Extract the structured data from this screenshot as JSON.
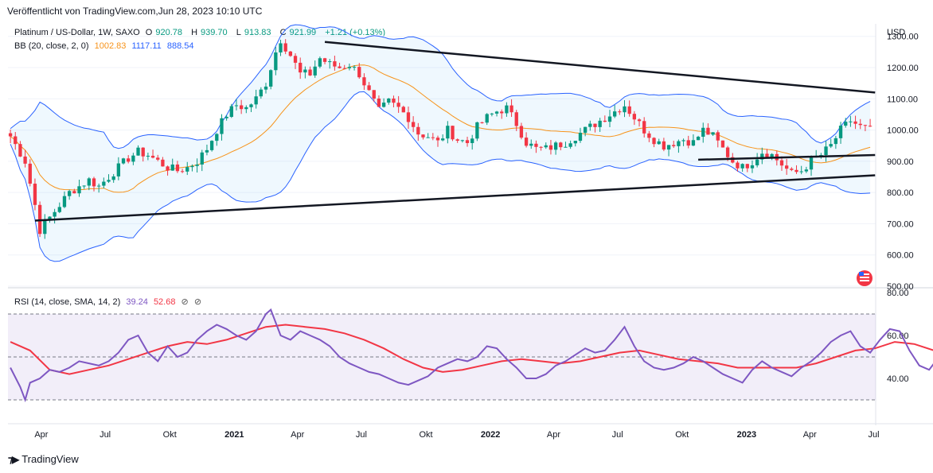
{
  "header": {
    "published": "Veröffentlicht von TradingView.com,Jun 28, 2023 10:10 UTC"
  },
  "legend_price": {
    "symbol": "Platinum / US-Dollar, 1W, SAXO",
    "o_label": "O",
    "o": "920.78",
    "h_label": "H",
    "h": "939.70",
    "l_label": "L",
    "l": "913.83",
    "c_label": "C",
    "c": "921.99",
    "chg": "+1.21 (+0.13%)"
  },
  "legend_bb": {
    "name": "BB (20, close, 2, 0)",
    "basis": "1002.83",
    "upper": "1117.11",
    "lower": "888.54"
  },
  "legend_rsi": {
    "name": "RSI (14, close, SMA, 14, 2)",
    "rsi": "39.24",
    "sma": "52.68"
  },
  "brand": {
    "name": "TradingView"
  },
  "colors": {
    "up": "#089981",
    "down": "#f23645",
    "bb_basis": "#f7931a",
    "bb_band": "#2962ff",
    "rsi": "#7e57c2",
    "rsi_ma": "#f23645",
    "trendline": "#131722"
  },
  "chart_data": [
    {
      "type": "candlestick",
      "title": "Platinum / US-Dollar, 1W, SAXO",
      "currency_label": "USD",
      "y_ticks": [
        "1300.00",
        "1200.00",
        "1100.00",
        "1000.00",
        "900.00",
        "800.00",
        "700.00",
        "600.00",
        "500.00"
      ],
      "ylim": [
        500,
        1340
      ],
      "x_ticks": [
        "Apr",
        "Jul",
        "Okt",
        "2021",
        "Apr",
        "Jul",
        "Okt",
        "2022",
        "Apr",
        "Jul",
        "Okt",
        "2023",
        "Apr",
        "Jul"
      ],
      "x_ticks_bold": [
        "2021",
        "2022",
        "2023"
      ],
      "date_range": [
        "2020-02-17",
        "2023-06-26"
      ],
      "overlays": [
        "Bollinger Bands (20, close, 2, 0)"
      ],
      "trendlines": [
        {
          "from": [
            "2020-03-23",
            710
          ],
          "to": [
            "2023-07-03",
            855
          ]
        },
        {
          "from": [
            "2021-05-10",
            1282
          ],
          "to": [
            "2023-07-03",
            1120
          ]
        },
        {
          "from": [
            "2022-10-24",
            905
          ],
          "to": [
            "2023-07-03",
            920
          ]
        }
      ],
      "close_path": [
        [
          0,
          980
        ],
        [
          3,
          900
        ],
        [
          5,
          760
        ],
        [
          6,
          680
        ],
        [
          8,
          720
        ],
        [
          10,
          760
        ],
        [
          12,
          800
        ],
        [
          14,
          820
        ],
        [
          16,
          840
        ],
        [
          18,
          820
        ],
        [
          20,
          850
        ],
        [
          22,
          880
        ],
        [
          24,
          910
        ],
        [
          26,
          930
        ],
        [
          28,
          920
        ],
        [
          30,
          900
        ],
        [
          32,
          880
        ],
        [
          34,
          870
        ],
        [
          36,
          880
        ],
        [
          38,
          900
        ],
        [
          40,
          940
        ],
        [
          42,
          1000
        ],
        [
          44,
          1050
        ],
        [
          46,
          1080
        ],
        [
          48,
          1070
        ],
        [
          50,
          1100
        ],
        [
          52,
          1150
        ],
        [
          54,
          1250
        ],
        [
          55,
          1290
        ],
        [
          57,
          1240
        ],
        [
          59,
          1180
        ],
        [
          61,
          1180
        ],
        [
          63,
          1230
        ],
        [
          65,
          1210
        ],
        [
          67,
          1200
        ],
        [
          69,
          1210
        ],
        [
          71,
          1180
        ],
        [
          73,
          1120
        ],
        [
          75,
          1060
        ],
        [
          77,
          1090
        ],
        [
          79,
          1070
        ],
        [
          81,
          1040
        ],
        [
          83,
          990
        ],
        [
          85,
          980
        ],
        [
          87,
          960
        ],
        [
          89,
          1000
        ],
        [
          91,
          970
        ],
        [
          93,
          960
        ],
        [
          95,
          1010
        ],
        [
          97,
          1040
        ],
        [
          99,
          1060
        ],
        [
          101,
          1070
        ],
        [
          103,
          1020
        ],
        [
          105,
          960
        ],
        [
          107,
          940
        ],
        [
          109,
          940
        ],
        [
          111,
          950
        ],
        [
          113,
          960
        ],
        [
          115,
          980
        ],
        [
          117,
          1000
        ],
        [
          119,
          1020
        ],
        [
          121,
          1040
        ],
        [
          123,
          1060
        ],
        [
          125,
          1080
        ],
        [
          127,
          1040
        ],
        [
          129,
          1000
        ],
        [
          131,
          970
        ],
        [
          133,
          950
        ],
        [
          135,
          960
        ],
        [
          137,
          970
        ],
        [
          139,
          960
        ],
        [
          141,
          1000
        ],
        [
          143,
          980
        ],
        [
          145,
          940
        ],
        [
          147,
          900
        ],
        [
          149,
          880
        ],
        [
          151,
          900
        ],
        [
          153,
          930
        ],
        [
          155,
          920
        ],
        [
          157,
          890
        ],
        [
          159,
          860
        ],
        [
          161,
          870
        ],
        [
          163,
          900
        ],
        [
          165,
          920
        ],
        [
          167,
          950
        ],
        [
          169,
          1000
        ],
        [
          171,
          1030
        ],
        [
          173,
          1010
        ],
        [
          175,
          1000
        ],
        [
          177,
          1060
        ],
        [
          179,
          1100
        ],
        [
          181,
          1080
        ],
        [
          183,
          1020
        ],
        [
          185,
          980
        ],
        [
          187,
          950
        ],
        [
          189,
          960
        ],
        [
          191,
          980
        ],
        [
          193,
          970
        ],
        [
          195,
          1000
        ],
        [
          197,
          1020
        ],
        [
          199,
          1100
        ],
        [
          201,
          1130
        ],
        [
          203,
          1100
        ],
        [
          205,
          1080
        ],
        [
          207,
          1060
        ],
        [
          209,
          1040
        ],
        [
          211,
          1000
        ],
        [
          213,
          960
        ],
        [
          214,
          920
        ]
      ]
    },
    {
      "type": "line",
      "title": "RSI (14, close, SMA, 14, 2)",
      "y_ticks": [
        "80.00",
        "60.00",
        "40.00"
      ],
      "ylim": [
        20,
        80
      ],
      "bands": [
        70,
        50,
        30
      ],
      "series": [
        {
          "name": "RSI",
          "points": [
            [
              0,
              45
            ],
            [
              2,
              36
            ],
            [
              3,
              30
            ],
            [
              4,
              38
            ],
            [
              6,
              40
            ],
            [
              8,
              44
            ],
            [
              10,
              43
            ],
            [
              12,
              45
            ],
            [
              14,
              48
            ],
            [
              16,
              47
            ],
            [
              18,
              46
            ],
            [
              20,
              48
            ],
            [
              22,
              52
            ],
            [
              24,
              58
            ],
            [
              26,
              60
            ],
            [
              28,
              52
            ],
            [
              30,
              48
            ],
            [
              32,
              55
            ],
            [
              34,
              50
            ],
            [
              36,
              52
            ],
            [
              38,
              58
            ],
            [
              40,
              62
            ],
            [
              42,
              65
            ],
            [
              44,
              63
            ],
            [
              46,
              60
            ],
            [
              48,
              58
            ],
            [
              50,
              62
            ],
            [
              52,
              70
            ],
            [
              53,
              72
            ],
            [
              55,
              60
            ],
            [
              57,
              58
            ],
            [
              59,
              62
            ],
            [
              61,
              60
            ],
            [
              63,
              58
            ],
            [
              65,
              55
            ],
            [
              67,
              50
            ],
            [
              69,
              47
            ],
            [
              71,
              45
            ],
            [
              73,
              43
            ],
            [
              75,
              42
            ],
            [
              77,
              40
            ],
            [
              79,
              38
            ],
            [
              81,
              37
            ],
            [
              83,
              39
            ],
            [
              85,
              41
            ],
            [
              87,
              45
            ],
            [
              89,
              47
            ],
            [
              91,
              49
            ],
            [
              93,
              48
            ],
            [
              95,
              50
            ],
            [
              97,
              55
            ],
            [
              99,
              54
            ],
            [
              101,
              49
            ],
            [
              103,
              45
            ],
            [
              105,
              40
            ],
            [
              107,
              40
            ],
            [
              109,
              42
            ],
            [
              111,
              46
            ],
            [
              113,
              48
            ],
            [
              115,
              51
            ],
            [
              117,
              54
            ],
            [
              119,
              52
            ],
            [
              121,
              53
            ],
            [
              123,
              58
            ],
            [
              125,
              64
            ],
            [
              127,
              55
            ],
            [
              129,
              48
            ],
            [
              131,
              45
            ],
            [
              133,
              44
            ],
            [
              135,
              45
            ],
            [
              137,
              47
            ],
            [
              139,
              50
            ],
            [
              141,
              48
            ],
            [
              143,
              45
            ],
            [
              145,
              42
            ],
            [
              147,
              40
            ],
            [
              149,
              38
            ],
            [
              151,
              44
            ],
            [
              153,
              48
            ],
            [
              155,
              45
            ],
            [
              157,
              43
            ],
            [
              159,
              41
            ],
            [
              161,
              45
            ],
            [
              163,
              48
            ],
            [
              165,
              52
            ],
            [
              167,
              57
            ],
            [
              169,
              60
            ],
            [
              171,
              62
            ],
            [
              173,
              55
            ],
            [
              175,
              52
            ],
            [
              177,
              58
            ],
            [
              179,
              63
            ],
            [
              181,
              62
            ],
            [
              183,
              53
            ],
            [
              185,
              46
            ],
            [
              187,
              44
            ],
            [
              189,
              50
            ],
            [
              191,
              52
            ],
            [
              193,
              50
            ],
            [
              195,
              54
            ],
            [
              197,
              60
            ],
            [
              199,
              65
            ],
            [
              201,
              58
            ],
            [
              203,
              56
            ],
            [
              205,
              52
            ],
            [
              207,
              50
            ],
            [
              209,
              45
            ],
            [
              211,
              42
            ],
            [
              213,
              39.24
            ]
          ]
        },
        {
          "name": "RSI-based MA",
          "points": [
            [
              0,
              57
            ],
            [
              4,
              53
            ],
            [
              8,
              44
            ],
            [
              12,
              42
            ],
            [
              16,
              44
            ],
            [
              20,
              46
            ],
            [
              24,
              49
            ],
            [
              28,
              52
            ],
            [
              32,
              55
            ],
            [
              36,
              57
            ],
            [
              40,
              56
            ],
            [
              44,
              58
            ],
            [
              48,
              61
            ],
            [
              52,
              64
            ],
            [
              56,
              65
            ],
            [
              60,
              64
            ],
            [
              64,
              63
            ],
            [
              68,
              61
            ],
            [
              72,
              58
            ],
            [
              76,
              54
            ],
            [
              80,
              49
            ],
            [
              84,
              45
            ],
            [
              88,
              43
            ],
            [
              92,
              44
            ],
            [
              96,
              46
            ],
            [
              100,
              48
            ],
            [
              104,
              49
            ],
            [
              108,
              48
            ],
            [
              112,
              47
            ],
            [
              116,
              48
            ],
            [
              120,
              50
            ],
            [
              124,
              52
            ],
            [
              128,
              53
            ],
            [
              132,
              51
            ],
            [
              136,
              49
            ],
            [
              140,
              48
            ],
            [
              144,
              47
            ],
            [
              148,
              45
            ],
            [
              152,
              45
            ],
            [
              156,
              45
            ],
            [
              160,
              45
            ],
            [
              164,
              47
            ],
            [
              168,
              50
            ],
            [
              172,
              53
            ],
            [
              176,
              54
            ],
            [
              180,
              57
            ],
            [
              184,
              56
            ],
            [
              188,
              53
            ],
            [
              192,
              51
            ],
            [
              196,
              52
            ],
            [
              200,
              55
            ],
            [
              204,
              55
            ],
            [
              208,
              54
            ],
            [
              212,
              53
            ],
            [
              213,
              52.68
            ]
          ]
        }
      ]
    }
  ]
}
